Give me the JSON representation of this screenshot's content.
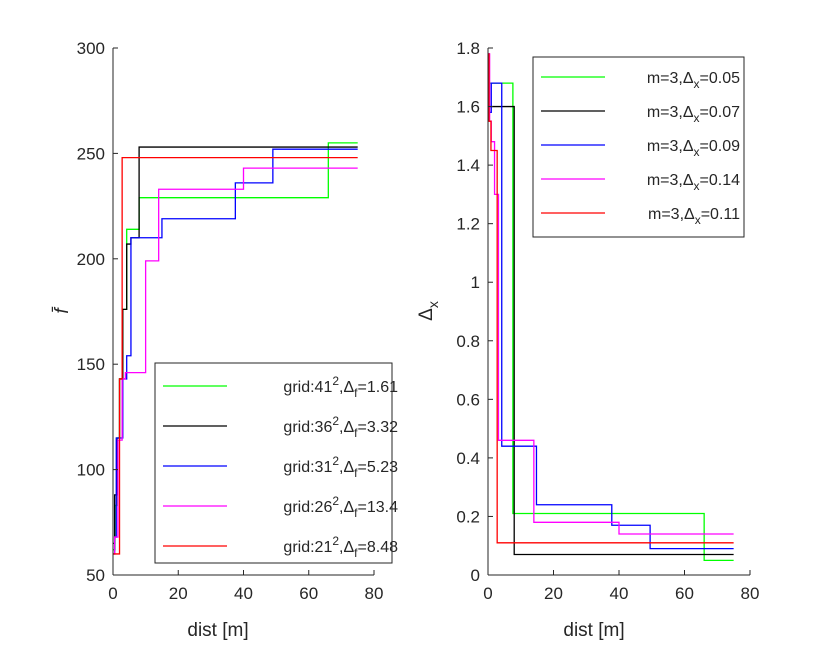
{
  "chart_data": [
    {
      "type": "line",
      "step": true,
      "xlabel": "dist [m]",
      "ylabel": "f̄",
      "xlim": [
        0,
        80
      ],
      "ylim": [
        50,
        300
      ],
      "xticks": [
        0,
        20,
        40,
        60,
        80
      ],
      "yticks": [
        50,
        100,
        150,
        200,
        250,
        300
      ],
      "legend_position": "bottom-right",
      "series": [
        {
          "name": "grid:41²,Δf=1.61",
          "label_parts": {
            "prefix": "grid:41",
            "sup": "2",
            "mid": ",Δ",
            "sub": "f",
            "suffix": "=1.61"
          },
          "color": "#00ff00",
          "x": [
            0,
            0.6,
            1.2,
            2.0,
            3.0,
            4.2,
            5.0,
            8.0,
            66.0,
            75.0
          ],
          "y": [
            62,
            83,
            115,
            143,
            176,
            214,
            214,
            229,
            255,
            255
          ]
        },
        {
          "name": "grid:36²,Δf=3.32",
          "label_parts": {
            "prefix": "grid:36",
            "sup": "2",
            "mid": ",Δ",
            "sub": "f",
            "suffix": "=3.32"
          },
          "color": "#000000",
          "x": [
            0,
            0.5,
            1.2,
            2.0,
            3.0,
            4.2,
            5.5,
            6.8,
            8.0,
            75.0
          ],
          "y": [
            65,
            88,
            115,
            143,
            176,
            207,
            210,
            210,
            253,
            253
          ]
        },
        {
          "name": "grid:31²,Δf=5.23",
          "label_parts": {
            "prefix": "grid:31",
            "sup": "2",
            "mid": ",Δ",
            "sub": "f",
            "suffix": "=5.23"
          },
          "color": "#0000ff",
          "x": [
            0,
            0.5,
            1.0,
            3.0,
            4.2,
            5.5,
            13.5,
            15.0,
            36.5,
            37.5,
            49.0,
            75.0
          ],
          "y": [
            60,
            68,
            115,
            143,
            154,
            210,
            210,
            219,
            219,
            236,
            252,
            252
          ]
        },
        {
          "name": "grid:26²,Δf=13.4",
          "label_parts": {
            "prefix": "grid:26",
            "sup": "2",
            "mid": ",Δ",
            "sub": "f",
            "suffix": "=13.4"
          },
          "color": "#ff00ff",
          "x": [
            0,
            0.5,
            1.5,
            2.8,
            3.8,
            7.5,
            10.0,
            14.0,
            40.0,
            75.0
          ],
          "y": [
            60,
            68,
            114,
            143,
            146,
            146,
            199,
            233,
            243,
            243
          ]
        },
        {
          "name": "grid:21²,Δf=8.48",
          "label_parts": {
            "prefix": "grid:21",
            "sup": "2",
            "mid": ",Δ",
            "sub": "f",
            "suffix": "=8.48"
          },
          "color": "#ff0000",
          "x": [
            0,
            2.0,
            2.8,
            75.0
          ],
          "y": [
            60,
            143,
            248,
            248
          ]
        }
      ]
    },
    {
      "type": "line",
      "step": true,
      "xlabel": "dist [m]",
      "ylabel": "Δx",
      "ylabel_parts": {
        "base": "Δ",
        "sub": "x"
      },
      "xlim": [
        0,
        80
      ],
      "ylim": [
        0,
        1.8
      ],
      "xticks": [
        0,
        20,
        40,
        60,
        80
      ],
      "yticks": [
        0,
        0.2,
        0.4,
        0.6,
        0.8,
        1,
        1.2,
        1.4,
        1.6,
        1.8
      ],
      "ytick_labels": [
        "0",
        "0.2",
        "0.4",
        "0.6",
        "0.8",
        "1",
        "1.2",
        "1.4",
        "1.6",
        "1.8"
      ],
      "legend_position": "top-right",
      "series": [
        {
          "name": "m=3,Δx=0.05",
          "label_parts": {
            "prefix": "m=3,Δ",
            "sub": "x",
            "suffix": "=0.05"
          },
          "color": "#00ff00",
          "x": [
            0,
            0.6,
            1.5,
            5.0,
            7.6,
            66.0,
            75.0
          ],
          "y": [
            1.68,
            1.68,
            1.68,
            1.68,
            0.21,
            0.05,
            0.05
          ]
        },
        {
          "name": "m=3,Δx=0.07",
          "label_parts": {
            "prefix": "m=3,Δ",
            "sub": "x",
            "suffix": "=0.07"
          },
          "color": "#000000",
          "x": [
            0,
            0.5,
            1.2,
            6.8,
            8.0,
            75.0
          ],
          "y": [
            1.6,
            1.6,
            1.6,
            1.6,
            0.07,
            0.07
          ]
        },
        {
          "name": "m=3,Δx=0.09",
          "label_parts": {
            "prefix": "m=3,Δ",
            "sub": "x",
            "suffix": "=0.09"
          },
          "color": "#0000ff",
          "x": [
            0,
            0.4,
            1.0,
            2.4,
            4.2,
            13.5,
            14.8,
            36.5,
            37.8,
            49.5,
            75.0
          ],
          "y": [
            1.78,
            1.58,
            1.68,
            1.68,
            0.44,
            0.44,
            0.24,
            0.24,
            0.17,
            0.09,
            0.09
          ]
        },
        {
          "name": "m=3,Δx=0.14",
          "label_parts": {
            "prefix": "m=3,Δ",
            "sub": "x",
            "suffix": "=0.14"
          },
          "color": "#ff00ff",
          "x": [
            0,
            0.5,
            1.0,
            2.0,
            3.2,
            14.0,
            37.0,
            40.0,
            75.0
          ],
          "y": [
            1.78,
            1.55,
            1.48,
            1.3,
            0.46,
            0.18,
            0.18,
            0.14,
            0.14
          ]
        },
        {
          "name": "m=3,Δx=0.11",
          "label_parts": {
            "prefix": "m=3,Δ",
            "sub": "x",
            "suffix": "=0.11"
          },
          "color": "#ff0000",
          "x": [
            0,
            0.3,
            0.9,
            2.8,
            75.0
          ],
          "y": [
            1.78,
            1.55,
            1.45,
            0.11,
            0.11
          ]
        }
      ]
    }
  ]
}
